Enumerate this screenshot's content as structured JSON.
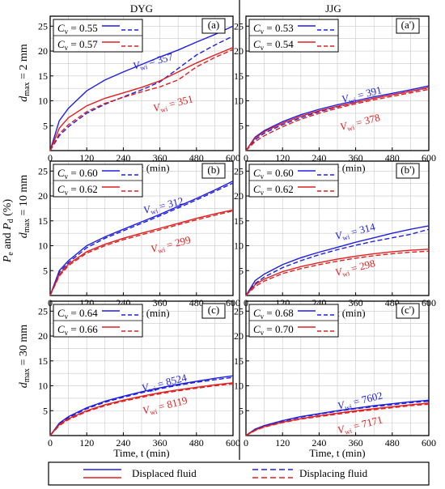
{
  "figure": {
    "column_titles": [
      "DYG",
      "JJG"
    ],
    "row_labels": [
      "d_max = 2 mm",
      "d_max = 10 mm",
      "d_max = 30 mm"
    ],
    "y_axis_label": "P_e and P_d (%)",
    "x_axis_label": "Time, t (min)",
    "legend": {
      "solid": "Displaced fluid",
      "dashed": "Displacing fluid"
    },
    "colors": {
      "blue": "#1f1fe0",
      "red": "#e01f1f"
    }
  },
  "chart_data": [
    {
      "type": "line",
      "panel": "(a)",
      "column": "DYG",
      "row": "2 mm",
      "xlim": [
        0,
        600
      ],
      "ylim": [
        0,
        27
      ],
      "xticks": [
        0,
        120,
        240,
        360,
        480,
        600
      ],
      "yticks": [
        5,
        10,
        15,
        20,
        25
      ],
      "cv": [
        "0.55",
        "0.57"
      ],
      "vwi": [
        {
          "value": "357",
          "color": "blue"
        },
        {
          "value": "351",
          "color": "red"
        }
      ],
      "x": [
        0,
        30,
        60,
        120,
        180,
        240,
        300,
        360,
        420,
        480,
        540,
        600
      ],
      "series": [
        {
          "color": "blue",
          "style": "solid",
          "values": [
            0,
            6.0,
            8.5,
            12.0,
            14.2,
            15.8,
            17.3,
            18.8,
            20.2,
            21.8,
            23.3,
            25.0
          ]
        },
        {
          "color": "blue",
          "style": "dashed",
          "values": [
            0,
            3.0,
            4.8,
            7.5,
            9.3,
            10.8,
            12.2,
            13.8,
            16.5,
            19.2,
            21.2,
            23.0
          ]
        },
        {
          "color": "red",
          "style": "solid",
          "values": [
            0,
            4.5,
            6.6,
            9.0,
            10.5,
            11.6,
            12.7,
            14.0,
            15.8,
            17.6,
            19.2,
            20.7
          ]
        },
        {
          "color": "red",
          "style": "dashed",
          "values": [
            0,
            3.4,
            5.2,
            7.8,
            9.5,
            10.7,
            11.8,
            12.8,
            14.2,
            16.8,
            18.7,
            20.3
          ]
        }
      ]
    },
    {
      "type": "line",
      "panel": "(a')",
      "column": "JJG",
      "row": "2 mm",
      "xlim": [
        0,
        600
      ],
      "ylim": [
        0,
        27
      ],
      "xticks": [
        0,
        120,
        240,
        360,
        480,
        600
      ],
      "yticks": [
        5,
        10,
        15,
        20,
        25
      ],
      "cv": [
        "0.53",
        "0.54"
      ],
      "vwi": [
        {
          "value": "391",
          "color": "blue"
        },
        {
          "value": "378",
          "color": "red"
        }
      ],
      "x": [
        0,
        30,
        60,
        120,
        180,
        240,
        300,
        360,
        420,
        480,
        540,
        600
      ],
      "series": [
        {
          "color": "blue",
          "style": "solid",
          "values": [
            0,
            2.7,
            4.0,
            5.8,
            7.2,
            8.3,
            9.2,
            10.0,
            10.8,
            11.5,
            12.2,
            13.0
          ]
        },
        {
          "color": "blue",
          "style": "dashed",
          "values": [
            0,
            2.2,
            3.5,
            5.2,
            6.6,
            7.8,
            8.8,
            9.7,
            10.5,
            11.2,
            11.9,
            12.6
          ]
        },
        {
          "color": "red",
          "style": "solid",
          "values": [
            0,
            2.5,
            3.8,
            5.5,
            6.9,
            8.0,
            8.9,
            9.7,
            10.5,
            11.2,
            11.9,
            12.7
          ]
        },
        {
          "color": "red",
          "style": "dashed",
          "values": [
            0,
            1.8,
            3.0,
            4.8,
            6.3,
            7.5,
            8.5,
            9.4,
            10.2,
            10.9,
            11.6,
            12.3
          ]
        }
      ]
    },
    {
      "type": "line",
      "panel": "(b)",
      "column": "DYG",
      "row": "10 mm",
      "xlim": [
        0,
        600
      ],
      "ylim": [
        0,
        27
      ],
      "xticks": [
        0,
        120,
        240,
        360,
        480,
        600
      ],
      "yticks": [
        5,
        10,
        15,
        20,
        25
      ],
      "cv": [
        "0.60",
        "0.62"
      ],
      "vwi": [
        {
          "value": "312",
          "color": "blue"
        },
        {
          "value": "299",
          "color": "red"
        }
      ],
      "x": [
        0,
        30,
        60,
        120,
        180,
        240,
        300,
        360,
        420,
        480,
        540,
        600
      ],
      "series": [
        {
          "color": "blue",
          "style": "solid",
          "values": [
            0,
            5.0,
            7.0,
            10.0,
            11.8,
            13.3,
            14.8,
            16.3,
            17.9,
            19.5,
            21.2,
            23.0
          ]
        },
        {
          "color": "blue",
          "style": "dashed",
          "values": [
            0,
            4.6,
            6.6,
            9.6,
            11.5,
            13.0,
            14.5,
            16.0,
            17.6,
            19.2,
            20.9,
            22.6
          ]
        },
        {
          "color": "red",
          "style": "solid",
          "values": [
            0,
            4.2,
            6.3,
            8.8,
            10.3,
            11.5,
            12.5,
            13.5,
            14.5,
            15.5,
            16.4,
            17.2
          ]
        },
        {
          "color": "red",
          "style": "dashed",
          "values": [
            0,
            3.9,
            6.0,
            8.5,
            10.0,
            11.2,
            12.2,
            13.2,
            14.2,
            15.2,
            16.1,
            17.0
          ]
        }
      ]
    },
    {
      "type": "line",
      "panel": "(b')",
      "column": "JJG",
      "row": "10 mm",
      "xlim": [
        0,
        600
      ],
      "ylim": [
        0,
        27
      ],
      "xticks": [
        0,
        120,
        240,
        360,
        480,
        600
      ],
      "yticks": [
        5,
        10,
        15,
        20,
        25
      ],
      "cv": [
        "0.60",
        "0.62"
      ],
      "vwi": [
        {
          "value": "314",
          "color": "blue"
        },
        {
          "value": "298",
          "color": "red"
        }
      ],
      "x": [
        0,
        30,
        60,
        120,
        180,
        240,
        300,
        360,
        420,
        480,
        540,
        600
      ],
      "series": [
        {
          "color": "blue",
          "style": "solid",
          "values": [
            0,
            3.0,
            4.3,
            6.2,
            7.6,
            8.7,
            9.7,
            10.7,
            11.6,
            12.5,
            13.3,
            14.0
          ]
        },
        {
          "color": "blue",
          "style": "dashed",
          "values": [
            0,
            2.4,
            3.7,
            5.6,
            7.0,
            8.2,
            9.2,
            10.1,
            10.9,
            11.6,
            12.3,
            13.3
          ]
        },
        {
          "color": "red",
          "style": "solid",
          "values": [
            0,
            2.2,
            3.3,
            4.8,
            5.8,
            6.6,
            7.3,
            7.9,
            8.4,
            8.8,
            9.1,
            9.3
          ]
        },
        {
          "color": "red",
          "style": "dashed",
          "values": [
            0,
            1.8,
            2.9,
            4.4,
            5.4,
            6.2,
            6.9,
            7.5,
            8.0,
            8.4,
            8.7,
            8.9
          ]
        }
      ]
    },
    {
      "type": "line",
      "panel": "(c)",
      "column": "DYG",
      "row": "30 mm",
      "xlim": [
        0,
        600
      ],
      "ylim": [
        0,
        27
      ],
      "xticks": [
        0,
        120,
        240,
        360,
        480,
        600
      ],
      "yticks": [
        5,
        10,
        15,
        20,
        25
      ],
      "cv": [
        "0.64",
        "0.66"
      ],
      "vwi": [
        {
          "value": "8524",
          "color": "blue"
        },
        {
          "value": "8119",
          "color": "red"
        }
      ],
      "x": [
        0,
        30,
        60,
        120,
        180,
        240,
        300,
        360,
        420,
        480,
        540,
        600
      ],
      "series": [
        {
          "color": "blue",
          "style": "solid",
          "values": [
            0,
            2.5,
            3.8,
            5.6,
            6.9,
            7.9,
            8.8,
            9.6,
            10.3,
            10.9,
            11.5,
            12.0
          ]
        },
        {
          "color": "blue",
          "style": "dashed",
          "values": [
            0,
            2.3,
            3.6,
            5.4,
            6.7,
            7.7,
            8.6,
            9.4,
            10.1,
            10.7,
            11.2,
            11.7
          ]
        },
        {
          "color": "red",
          "style": "solid",
          "values": [
            0,
            2.2,
            3.4,
            5.0,
            6.2,
            7.1,
            7.9,
            8.6,
            9.2,
            9.7,
            10.2,
            10.6
          ]
        },
        {
          "color": "red",
          "style": "dashed",
          "values": [
            0,
            2.0,
            3.2,
            4.8,
            6.0,
            6.9,
            7.7,
            8.4,
            9.0,
            9.5,
            10.0,
            10.4
          ]
        }
      ]
    },
    {
      "type": "line",
      "panel": "(c')",
      "column": "JJG",
      "row": "30 mm",
      "xlim": [
        0,
        600
      ],
      "ylim": [
        0,
        27
      ],
      "xticks": [
        0,
        120,
        240,
        360,
        480,
        600
      ],
      "yticks": [
        5,
        10,
        15,
        20,
        25
      ],
      "cv": [
        "0.68",
        "0.70"
      ],
      "vwi": [
        {
          "value": "7602",
          "color": "blue"
        },
        {
          "value": "7171",
          "color": "red"
        }
      ],
      "x": [
        0,
        30,
        60,
        120,
        180,
        240,
        300,
        360,
        420,
        480,
        540,
        600
      ],
      "series": [
        {
          "color": "blue",
          "style": "solid",
          "values": [
            0,
            1.3,
            2.0,
            3.0,
            3.8,
            4.4,
            5.0,
            5.5,
            6.0,
            6.4,
            6.8,
            7.1
          ]
        },
        {
          "color": "blue",
          "style": "dashed",
          "values": [
            0,
            1.2,
            1.9,
            2.9,
            3.7,
            4.3,
            4.9,
            5.4,
            5.8,
            6.2,
            6.6,
            6.9
          ]
        },
        {
          "color": "red",
          "style": "solid",
          "values": [
            0,
            1.1,
            1.8,
            2.7,
            3.4,
            4.0,
            4.5,
            5.0,
            5.4,
            5.8,
            6.2,
            6.5
          ]
        },
        {
          "color": "red",
          "style": "dashed",
          "values": [
            0,
            1.0,
            1.7,
            2.6,
            3.3,
            3.8,
            4.3,
            4.8,
            5.2,
            5.6,
            6.0,
            6.3
          ]
        }
      ]
    }
  ]
}
